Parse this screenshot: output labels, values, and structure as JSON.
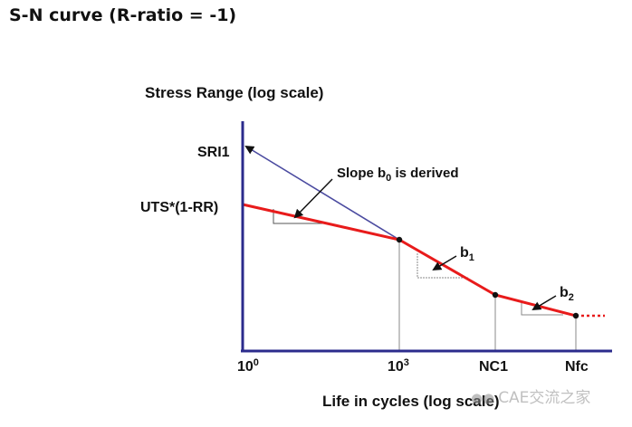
{
  "header": {
    "title": "S-N curve (R-ratio = -1)"
  },
  "axes": {
    "y_title": "Stress Range (log scale)",
    "x_title": "Life in cycles (log scale)",
    "y_labels": {
      "sri1": "SRI1",
      "uts": "UTS*(1-RR)"
    },
    "x_ticks": {
      "t1_base": "10",
      "t1_exp": "0",
      "t2_base": "10",
      "t2_exp": "3",
      "nc1": "NC1",
      "nfc": "Nfc"
    }
  },
  "annotations": {
    "slope_b0_pre": "Slope b",
    "slope_b0_sub": "0",
    "slope_b0_post": " is derived",
    "b1_base": "b",
    "b1_sub": "1",
    "b2_base": "b",
    "b2_sub": "2"
  },
  "watermark": {
    "text": "CAE交流之家"
  },
  "colors": {
    "axis": "#2b2b8c",
    "curve": "#e81b1b",
    "slope_line": "#4b4ba0",
    "guide": "#888888"
  }
}
